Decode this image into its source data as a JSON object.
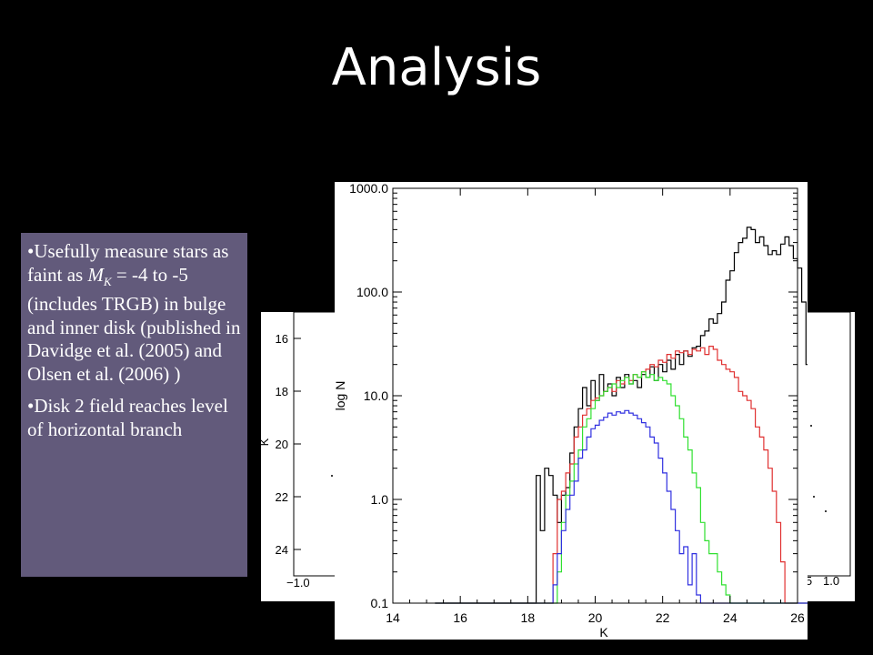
{
  "title": "Analysis",
  "text_box": {
    "bullet1_pre": "Usefully measure stars as faint as ",
    "bullet1_symbol": "M",
    "bullet1_subscript": "K",
    "bullet1_post": " = -4 to -5 (includes TRGB) in bulge and inner disk (published in Davidge et al. (2005) and Olsen et al. (2006) )",
    "bullet2": "Disk 2 field reaches level of horizontal branch",
    "bullet_char": "•"
  },
  "chart_data": [
    {
      "type": "scatter",
      "note": "partially hidden colour-magnitude diagram behind histogram",
      "ylabel": "K",
      "y_ticks": [
        "16",
        "18",
        "20",
        "22",
        "24"
      ],
      "x_ticks_left": [
        "−1.0"
      ],
      "x_ticks_right": [
        "0.5",
        "1.0"
      ],
      "ylim": [
        25,
        15
      ]
    },
    {
      "type": "line",
      "subtype": "step-histogram",
      "xlabel": "K",
      "ylabel": "log N",
      "xlim": [
        14,
        26
      ],
      "ylim": [
        0.1,
        1000
      ],
      "yscale": "log",
      "x_ticks": [
        "14",
        "16",
        "18",
        "20",
        "22",
        "24",
        "26"
      ],
      "y_ticks": [
        "0.1",
        "1.0",
        "10.0",
        "100.0",
        "1000.0"
      ],
      "bin_start": 15.25,
      "bin_width": 0.125,
      "series": [
        {
          "color": "#000000",
          "values": [
            0.1,
            0.1,
            0.1,
            0.1,
            0.1,
            0.1,
            0.1,
            0.1,
            0.1,
            0.1,
            0.1,
            0.1,
            0.1,
            0.1,
            0.1,
            0.1,
            0.1,
            0.1,
            0.1,
            0.1,
            0.1,
            0.1,
            0.1,
            0.1,
            1.7,
            0.5,
            2.0,
            1.7,
            1.1,
            0.6,
            1.1,
            1.3,
            2.8,
            5.0,
            7.5,
            12,
            8,
            14,
            9,
            16,
            11,
            13,
            10,
            15,
            12,
            16,
            13,
            14,
            12,
            16,
            15,
            19,
            14,
            20,
            17,
            22,
            18,
            25,
            20,
            27,
            24,
            29,
            30,
            38,
            42,
            55,
            50,
            62,
            80,
            130,
            160,
            240,
            300,
            330,
            420,
            400,
            300,
            340,
            280,
            230,
            250,
            230,
            290,
            340,
            280,
            210,
            170,
            80,
            20,
            4,
            0.5,
            0.1,
            0.1,
            0.1,
            0.1,
            0.1,
            0.1,
            0.1,
            0.1,
            0.1,
            0.1,
            0.1,
            0.1,
            0.1,
            0.1,
            0.1,
            0.1,
            0.1
          ]
        },
        {
          "color": "#e03030",
          "values": [
            0.1,
            0.1,
            0.1,
            0.1,
            0.1,
            0.1,
            0.1,
            0.1,
            0.1,
            0.1,
            0.1,
            0.1,
            0.1,
            0.1,
            0.1,
            0.1,
            0.1,
            0.1,
            0.1,
            0.1,
            0.1,
            0.1,
            0.1,
            0.1,
            0.1,
            0.1,
            0.1,
            0.1,
            0.3,
            1.0,
            1.2,
            1.8,
            2.2,
            4.0,
            5.0,
            6.5,
            7.5,
            9.0,
            9.5,
            10.0,
            11,
            12,
            11,
            14,
            13,
            15,
            14,
            16,
            15,
            17,
            18,
            20,
            19,
            22,
            21,
            25,
            23,
            27,
            26,
            27,
            25,
            28,
            27,
            29,
            25,
            30,
            28,
            22,
            20,
            18,
            17,
            15,
            11,
            10,
            9,
            7.5,
            5,
            4,
            3,
            2,
            1.2,
            0.6,
            0.25,
            0.1,
            0.1,
            0.1,
            0.1,
            0.1,
            0.1,
            0.1,
            0.1,
            0.1,
            0.1,
            0.1,
            0.1,
            0.1,
            0.1,
            0.1,
            0.1,
            0.1,
            0.1,
            0.1,
            0.1,
            0.1,
            0.1,
            0.1
          ]
        },
        {
          "color": "#30e030",
          "values": [
            0.1,
            0.1,
            0.1,
            0.1,
            0.1,
            0.1,
            0.1,
            0.1,
            0.1,
            0.1,
            0.1,
            0.1,
            0.1,
            0.1,
            0.1,
            0.1,
            0.1,
            0.1,
            0.1,
            0.1,
            0.1,
            0.1,
            0.1,
            0.1,
            0.1,
            0.1,
            0.1,
            0.1,
            0.1,
            0.2,
            0.6,
            1.1,
            1.5,
            2.2,
            3.0,
            5.0,
            6.0,
            7.5,
            9.0,
            10.0,
            11,
            12,
            13,
            12,
            14,
            15,
            13,
            16,
            15,
            17,
            15,
            16,
            14,
            15,
            14,
            13,
            10,
            8,
            6,
            4,
            3,
            1.8,
            1.3,
            0.6,
            0.4,
            0.3,
            0.3,
            0.2,
            0.15,
            0.12,
            0.1,
            0.1,
            0.1,
            0.1,
            0.1,
            0.1,
            0.1,
            0.1,
            0.1,
            0.1,
            0.1,
            0.1,
            0.1,
            0.1,
            0.1,
            0.1,
            0.1,
            0.1,
            0.1,
            0.1,
            0.1,
            0.1,
            0.1,
            0.1,
            0.1,
            0.1,
            0.1,
            0.1,
            0.1,
            0.1,
            0.1,
            0.1,
            0.1,
            0.1,
            0.1,
            0.1
          ]
        },
        {
          "color": "#3030e0",
          "values": [
            0.1,
            0.1,
            0.1,
            0.1,
            0.1,
            0.1,
            0.1,
            0.1,
            0.1,
            0.1,
            0.1,
            0.1,
            0.1,
            0.1,
            0.1,
            0.1,
            0.1,
            0.1,
            0.1,
            0.1,
            0.1,
            0.1,
            0.1,
            0.1,
            0.1,
            0.1,
            0.1,
            0.1,
            0.15,
            0.3,
            0.5,
            0.8,
            1.1,
            1.5,
            2.5,
            3.0,
            4.0,
            4.8,
            5.2,
            5.8,
            6.2,
            6.8,
            6.5,
            7.0,
            6.8,
            7.2,
            6.8,
            6.5,
            6.0,
            5.5,
            5.0,
            4.0,
            3.5,
            2.5,
            1.8,
            1.2,
            0.8,
            0.5,
            0.3,
            0.35,
            0.15,
            0.3,
            0.12,
            0.1,
            0.1,
            0.1,
            0.1,
            0.1,
            0.1,
            0.1,
            0.1,
            0.1,
            0.1,
            0.1,
            0.1,
            0.1,
            0.1,
            0.1,
            0.1,
            0.1,
            0.1,
            0.1,
            0.1,
            0.1,
            0.1,
            0.1,
            0.1,
            0.1,
            0.1,
            0.1,
            0.1,
            0.1,
            0.1,
            0.1,
            0.1,
            0.1,
            0.1,
            0.1,
            0.1,
            0.1,
            0.1,
            0.1,
            0.1,
            0.1,
            0.1,
            0.1
          ]
        }
      ]
    }
  ]
}
